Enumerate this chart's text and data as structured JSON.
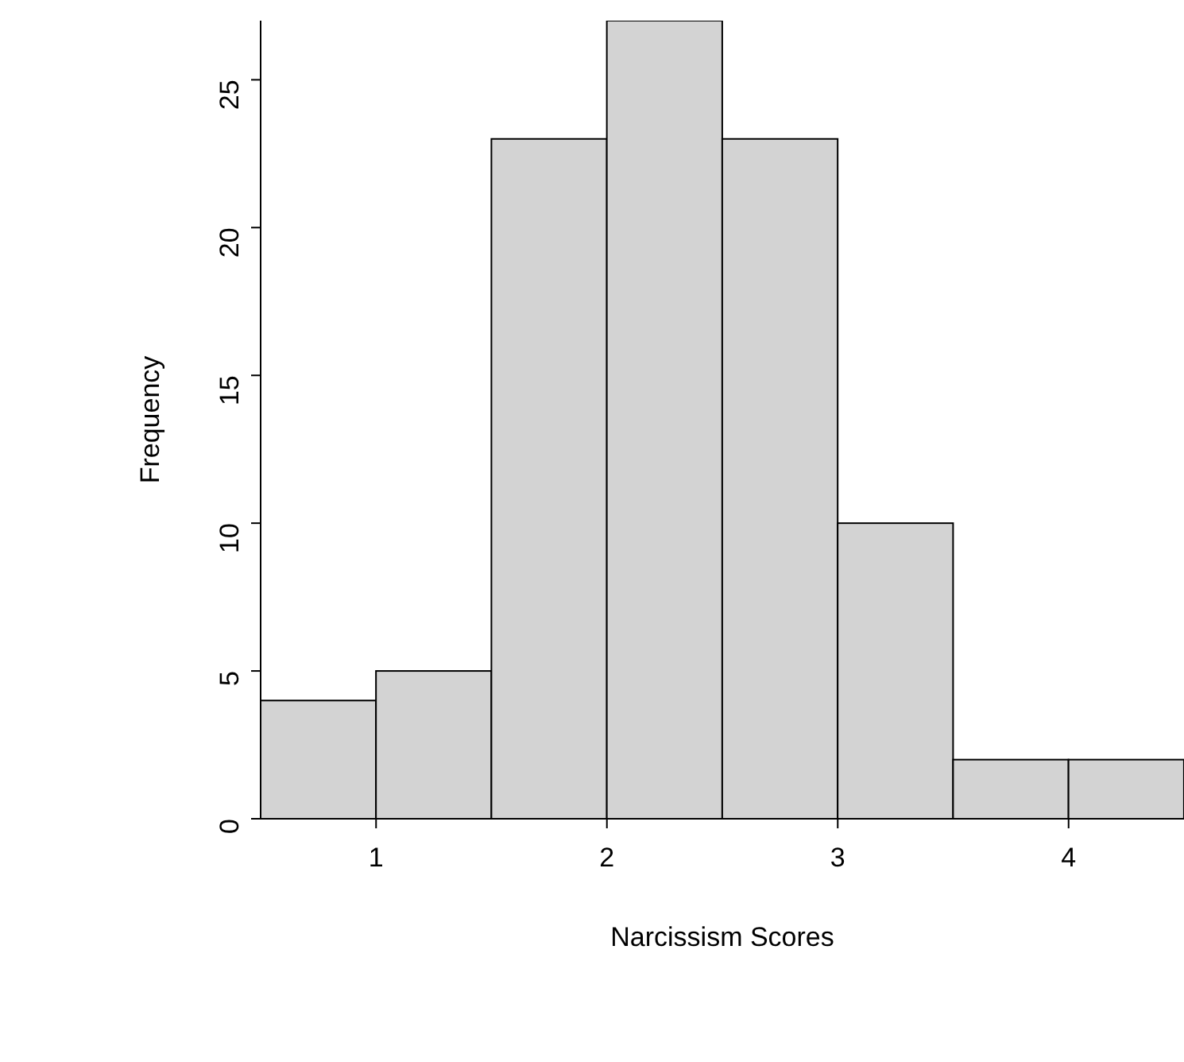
{
  "chart_data": {
    "type": "histogram",
    "xlabel": "Narcissism Scores",
    "ylabel": "Frequency",
    "bins": [
      0.5,
      1,
      1.5,
      2,
      2.5,
      3,
      3.5,
      4,
      4.5
    ],
    "values": [
      4,
      5,
      23,
      27,
      23,
      10,
      2,
      2
    ],
    "color": "#d3d3d3",
    "xlim": [
      0.5,
      4.5
    ],
    "xticks": [
      1,
      2,
      3,
      4
    ],
    "ylim": [
      0,
      27
    ],
    "yticks": [
      0,
      5,
      10,
      15,
      20,
      25
    ],
    "grid": false,
    "legend": false
  }
}
